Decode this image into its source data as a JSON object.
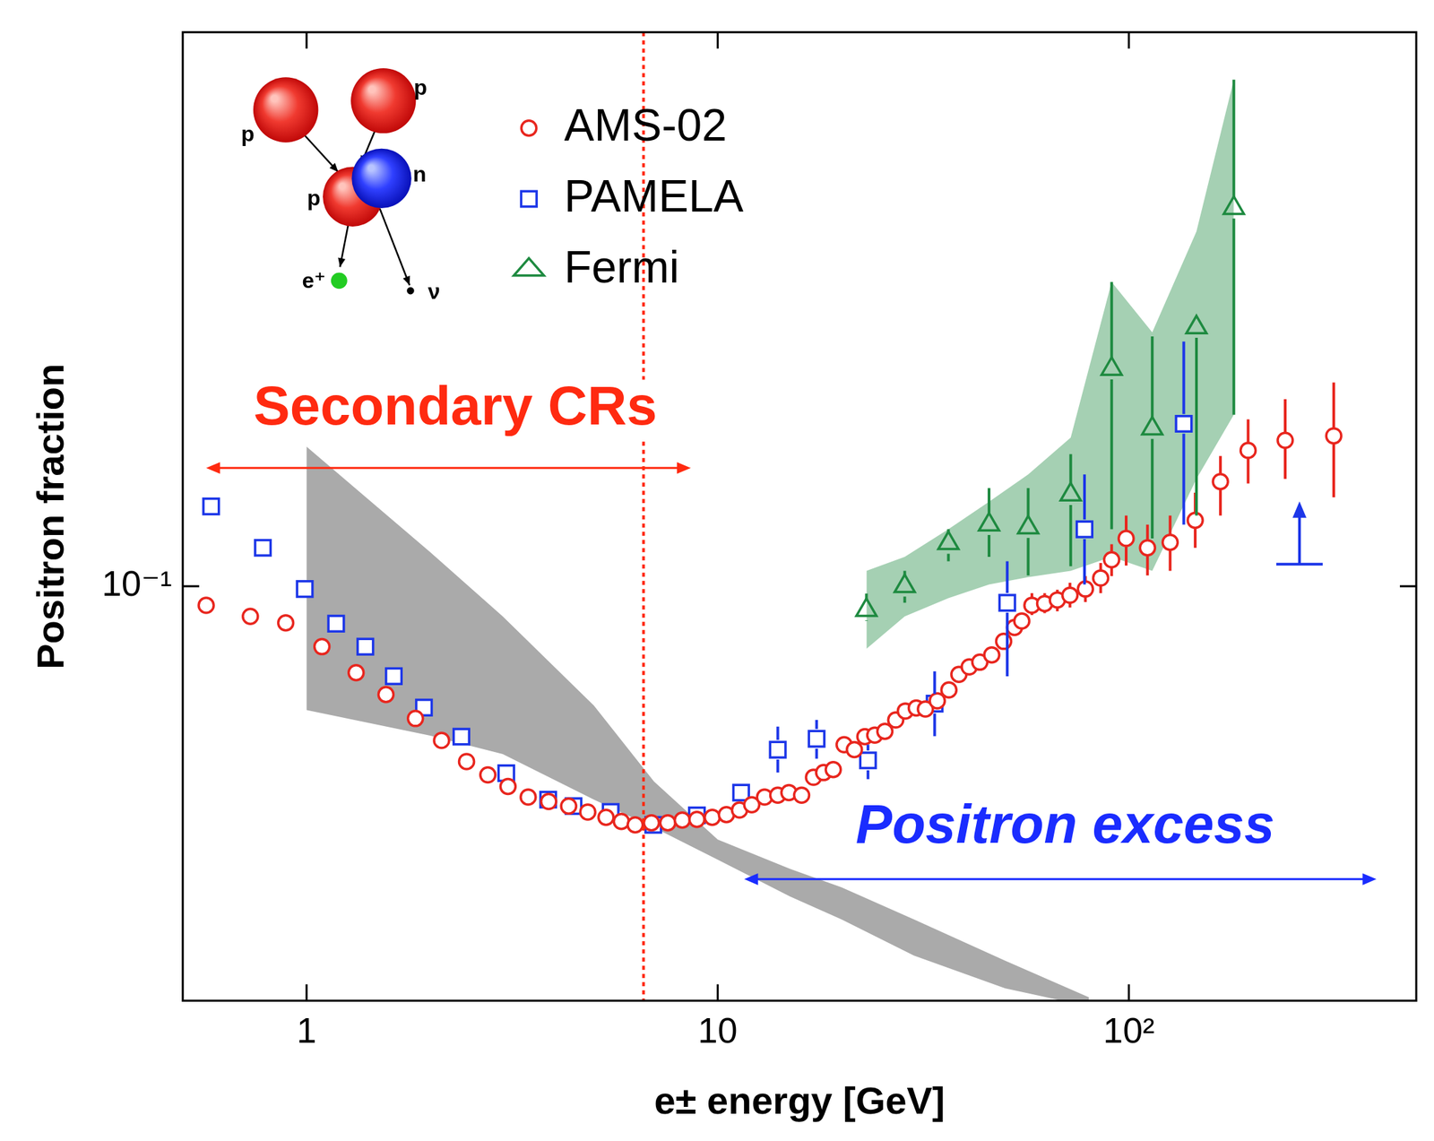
{
  "chart_data": {
    "type": "scatter",
    "x_label": "e± energy [GeV]",
    "y_label": "Positron fraction",
    "log": true,
    "grid": false,
    "legend": "upper left",
    "xlim": [
      0.5,
      500
    ],
    "ylim": [
      0.03,
      0.5
    ],
    "xticks": [
      1,
      10,
      {
        "value": 100,
        "label": "10²"
      }
    ],
    "yticks": [
      {
        "value": 0.1,
        "label": "10⁻¹"
      }
    ],
    "series": [
      {
        "name": "AMS-02",
        "color": "#e8261e",
        "marker": "circle",
        "x": [
          0.57,
          0.73,
          0.89,
          1.09,
          1.32,
          1.56,
          1.84,
          2.13,
          2.45,
          2.76,
          3.09,
          3.46,
          3.88,
          4.34,
          4.83,
          5.35,
          5.83,
          6.3,
          6.9,
          7.56,
          8.2,
          8.9,
          9.7,
          10.5,
          11.3,
          12.1,
          13.0,
          14.0,
          14.9,
          16.0,
          17.1,
          18.1,
          19.1,
          20.3,
          21.5,
          22.8,
          24.1,
          25.5,
          27.1,
          28.6,
          30.4,
          32.0,
          34.2,
          36.5,
          38.6,
          40.9,
          43.4,
          46.4,
          49.6,
          52.7,
          54.9,
          58.1,
          62.4,
          67.0,
          71.9,
          78.4,
          85.4,
          90.8,
          98.5,
          111,
          126,
          145,
          167,
          195,
          240,
          315
        ],
        "values": [
          0.0946,
          0.0916,
          0.0899,
          0.0839,
          0.0778,
          0.073,
          0.0681,
          0.0639,
          0.0601,
          0.0578,
          0.0559,
          0.0542,
          0.0535,
          0.0528,
          0.0519,
          0.0511,
          0.0505,
          0.05,
          0.0503,
          0.0503,
          0.0507,
          0.0508,
          0.0511,
          0.0515,
          0.0522,
          0.053,
          0.0542,
          0.0545,
          0.0549,
          0.0545,
          0.0574,
          0.0582,
          0.0587,
          0.0631,
          0.0622,
          0.0646,
          0.0649,
          0.0656,
          0.0678,
          0.0696,
          0.0702,
          0.07,
          0.0717,
          0.074,
          0.0774,
          0.0791,
          0.0802,
          0.0819,
          0.0852,
          0.0887,
          0.0904,
          0.0946,
          0.0951,
          0.0961,
          0.0974,
          0.0992,
          0.1024,
          0.108,
          0.1149,
          0.1118,
          0.1136,
          0.1211,
          0.1355,
          0.1484,
          0.1528,
          0.1548
        ],
        "errors": [
          null,
          null,
          null,
          null,
          null,
          null,
          null,
          null,
          null,
          null,
          null,
          null,
          null,
          null,
          null,
          null,
          null,
          null,
          null,
          null,
          null,
          null,
          null,
          null,
          null,
          null,
          null,
          null,
          null,
          null,
          null,
          null,
          null,
          null,
          null,
          null,
          null,
          null,
          null,
          null,
          null,
          null,
          null,
          null,
          null,
          null,
          null,
          null,
          null,
          null,
          null,
          [
            0.092,
            0.098
          ],
          [
            0.0925,
            0.098
          ],
          [
            0.093,
            0.099
          ],
          [
            0.094,
            0.101
          ],
          [
            0.0955,
            0.103
          ],
          [
            0.098,
            0.107
          ],
          [
            0.103,
            0.113
          ],
          [
            0.1062,
            0.1228
          ],
          [
            0.1032,
            0.1196
          ],
          [
            0.1046,
            0.1228
          ],
          [
            0.1118,
            0.1312
          ],
          [
            0.1228,
            0.146
          ],
          [
            0.1348,
            0.1624
          ],
          [
            0.1366,
            0.1722
          ],
          [
            0.1295,
            0.1807
          ]
        ]
      },
      {
        "name": "PAMELA",
        "color": "#1c36e8",
        "marker": "square",
        "x": [
          0.586,
          0.783,
          0.99,
          1.18,
          1.39,
          1.63,
          1.93,
          2.38,
          3.06,
          3.87,
          4.46,
          5.49,
          6.97,
          8.9,
          11.4,
          14.0,
          17.4,
          23.2,
          33.7,
          50.6,
          78.0,
          136
        ],
        "values": [
          0.1261,
          0.1118,
          0.0992,
          0.0897,
          0.0839,
          0.077,
          0.0703,
          0.0646,
          0.0581,
          0.0538,
          0.0528,
          0.0519,
          0.05,
          0.0514,
          0.0549,
          0.0622,
          0.0642,
          0.0603,
          0.0711,
          0.0953,
          0.118,
          0.1603
        ],
        "errors": [
          null,
          null,
          null,
          null,
          null,
          null,
          null,
          null,
          null,
          null,
          null,
          null,
          null,
          null,
          null,
          [
            0.0582,
            0.0665
          ],
          [
            0.0606,
            0.0678
          ],
          [
            0.0571,
            0.0631
          ],
          [
            0.0647,
            0.0781
          ],
          [
            0.077,
            0.1075
          ],
          [
            0.1005,
            0.1384
          ],
          [
            0.1196,
            0.2036
          ]
        ],
        "lower_limit": {
          "x": 260,
          "value": 0.1066
        }
      },
      {
        "name": "Fermi",
        "color": "#1e8a40",
        "marker": "triangle",
        "x": [
          23.0,
          28.5,
          36.4,
          45.7,
          56.9,
          72.2,
          90.8,
          114,
          146,
          180
        ],
        "values": [
          0.0933,
          0.1,
          0.1133,
          0.1196,
          0.1186,
          0.1305,
          0.188,
          0.1581,
          0.2121,
          0.3
        ],
        "errors": [
          [
            0.0904,
            0.0979
          ],
          [
            0.0953,
            0.1046
          ],
          [
            0.1075,
            0.118
          ],
          [
            0.1089,
            0.133
          ],
          [
            0.1032,
            0.133
          ],
          [
            0.106,
            0.1468
          ],
          [
            0.118,
            0.242
          ],
          [
            0.1149,
            0.2066
          ],
          [
            0.1228,
            0.2176
          ],
          [
            0.1646,
            0.4355
          ]
        ],
        "band_low": [
          0.0834,
          0.0916,
          0.0966,
          0.1005,
          0.1027,
          0.1046,
          0.1089,
          0.1046,
          0.1366,
          0.1646
        ],
        "band_high": [
          0.1046,
          0.1089,
          0.118,
          0.1278,
          0.1384,
          0.154,
          0.242,
          0.2091,
          0.2802,
          0.4355
        ]
      }
    ],
    "model_band": {
      "color": "#aaaaaa",
      "x": [
        1,
        2,
        3,
        5,
        7,
        10,
        15,
        20,
        30,
        50,
        80
      ],
      "low": [
        0.0698,
        0.0648,
        0.0614,
        0.0538,
        0.0496,
        0.0452,
        0.0406,
        0.038,
        0.0342,
        0.0311,
        0.0295
      ],
      "high": [
        0.15,
        0.1104,
        0.0916,
        0.0707,
        0.0567,
        0.0479,
        0.044,
        0.0417,
        0.038,
        0.0337,
        0.0303
      ]
    },
    "vline": {
      "x": 6.6,
      "color": "#ff2a10",
      "line_style": "dotted"
    },
    "annotations": [
      {
        "text": "Secondary CRs",
        "x": 2.3,
        "y": 0.167,
        "color": "#ff2a10",
        "arrow_x": [
          0.57,
          8.6
        ],
        "arrow_y": 0.141
      },
      {
        "text": "Positron excess",
        "x": 70,
        "y": 0.0496,
        "color": "#1a2cff",
        "arrow_x": [
          11.6,
          400
        ],
        "arrow_y": 0.0427
      }
    ],
    "inset": {
      "labels": [
        "p",
        "p",
        "p",
        "n",
        "e⁺",
        "ν"
      ]
    }
  }
}
